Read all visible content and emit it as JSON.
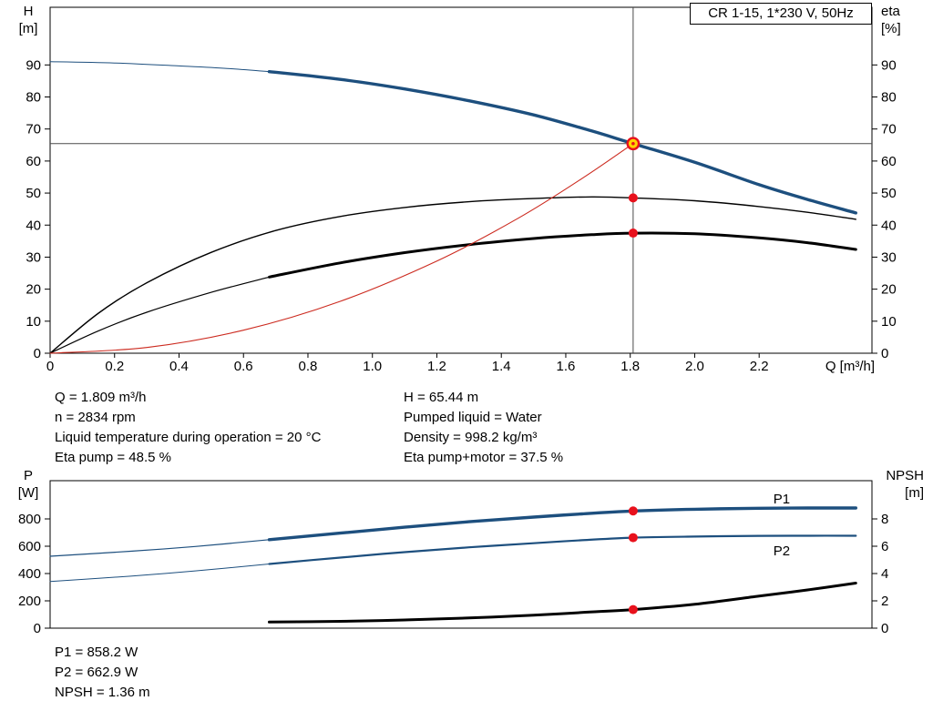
{
  "title_box": {
    "label": "CR 1-15, 1*230 V, 50Hz"
  },
  "colors": {
    "curve_blue": "#1d4f7e",
    "curve_black": "#000000",
    "system_red": "#cc2a1f",
    "dot": "#e8111c",
    "op_point_fill": "#ffd400",
    "duty_line": "#4a4a4a"
  },
  "info_top_left": [
    "Q = 1.809 m³/h",
    "n = 2834 rpm",
    "Liquid temperature during operation = 20 °C",
    "Eta pump = 48.5 %"
  ],
  "info_top_right": [
    "H = 65.44 m",
    "Pumped liquid = Water",
    "Density = 998.2 kg/m³",
    "Eta pump+motor = 37.5 %"
  ],
  "info_bottom": [
    "P1 = 858.2 W",
    "P2 = 662.9 W",
    "NPSH = 1.36 m"
  ],
  "chart_data": [
    {
      "id": "hq-eta",
      "type": "line",
      "x_axis": {
        "label": "Q [m³/h]",
        "min": 0,
        "max": 2.55,
        "ticks": [
          "0",
          "0.2",
          "0.4",
          "0.6",
          "0.8",
          "1.0",
          "1.2",
          "1.4",
          "1.6",
          "1.8",
          "2.0",
          "2.2"
        ]
      },
      "y_left": {
        "title_lines": [
          "H",
          "[m]"
        ],
        "min": 0,
        "max": 108,
        "ticks": [
          90,
          80,
          70,
          60,
          50,
          40,
          30,
          20,
          10,
          0
        ]
      },
      "y_right": {
        "title_lines": [
          "eta",
          "[%]"
        ],
        "min": 0,
        "max": 108,
        "ticks": [
          90,
          80,
          70,
          60,
          50,
          40,
          30,
          20,
          10,
          0
        ]
      },
      "duty_point": {
        "q": 1.809,
        "h": 65.44
      },
      "series": [
        {
          "name": "head-curve",
          "axis": "left",
          "color": "#1d4f7e",
          "width": 1,
          "thick_width": 3.4,
          "thick_from": 0.68,
          "points": [
            [
              0,
              91
            ],
            [
              0.2,
              90.6
            ],
            [
              0.4,
              89.7
            ],
            [
              0.55,
              88.9
            ],
            [
              0.68,
              87.9
            ],
            [
              0.9,
              85.5
            ],
            [
              1.1,
              82.5
            ],
            [
              1.3,
              78.8
            ],
            [
              1.5,
              74.4
            ],
            [
              1.68,
              69.4
            ],
            [
              1.809,
              65.44
            ],
            [
              2.0,
              59.6
            ],
            [
              2.2,
              52.6
            ],
            [
              2.35,
              48
            ],
            [
              2.5,
              43.8
            ]
          ]
        },
        {
          "name": "eta-pump-curve",
          "axis": "right",
          "color": "#000000",
          "width": 1.4,
          "points": [
            [
              0,
              0
            ],
            [
              0.15,
              12.5
            ],
            [
              0.3,
              22
            ],
            [
              0.5,
              31.5
            ],
            [
              0.7,
              38.3
            ],
            [
              0.9,
              42.7
            ],
            [
              1.1,
              45.5
            ],
            [
              1.3,
              47.3
            ],
            [
              1.5,
              48.3
            ],
            [
              1.68,
              48.8
            ],
            [
              1.809,
              48.5
            ],
            [
              2.0,
              47.6
            ],
            [
              2.2,
              45.8
            ],
            [
              2.35,
              44
            ],
            [
              2.5,
              41.8
            ]
          ]
        },
        {
          "name": "eta-pump-motor-curve",
          "axis": "right",
          "color": "#000000",
          "width": 1.2,
          "thick_width": 3,
          "thick_from": 0.68,
          "points": [
            [
              0,
              0
            ],
            [
              0.15,
              7
            ],
            [
              0.3,
              12.8
            ],
            [
              0.5,
              19
            ],
            [
              0.68,
              23.8
            ],
            [
              0.9,
              28.2
            ],
            [
              1.1,
              31.4
            ],
            [
              1.3,
              33.9
            ],
            [
              1.5,
              35.8
            ],
            [
              1.68,
              37
            ],
            [
              1.809,
              37.5
            ],
            [
              2.0,
              37.3
            ],
            [
              2.2,
              36
            ],
            [
              2.35,
              34.5
            ],
            [
              2.5,
              32.4
            ]
          ]
        },
        {
          "name": "system-curve",
          "axis": "left",
          "color": "#cc2a1f",
          "width": 1.1,
          "points": [
            [
              0,
              0
            ],
            [
              0.3,
              1.8
            ],
            [
              0.6,
              7.2
            ],
            [
              0.9,
              16.2
            ],
            [
              1.2,
              28.8
            ],
            [
              1.45,
              42
            ],
            [
              1.65,
              54.5
            ],
            [
              1.809,
              65.44
            ]
          ]
        }
      ],
      "markers": [
        {
          "kind": "operating-point",
          "name": "operating-point-marker",
          "q": 1.809,
          "axis": "left",
          "v": 65.44
        },
        {
          "kind": "dot",
          "name": "eta-pump-dot",
          "q": 1.809,
          "axis": "right",
          "v": 48.5
        },
        {
          "kind": "dot",
          "name": "eta-pump-motor-dot",
          "q": 1.809,
          "axis": "right",
          "v": 37.5
        }
      ]
    },
    {
      "id": "power-npsh",
      "type": "line",
      "x_axis": {
        "label": "",
        "min": 0,
        "max": 2.55,
        "ticks": []
      },
      "y_left": {
        "title_lines": [
          "P",
          "[W]"
        ],
        "min": 0,
        "max": 1080,
        "ticks": [
          800,
          600,
          400,
          200,
          0
        ]
      },
      "y_right": {
        "title_lines": [
          "NPSH",
          "[m]"
        ],
        "min": 0,
        "max": 10.8,
        "ticks": [
          8,
          6,
          4,
          2,
          0
        ]
      },
      "series": [
        {
          "name": "p1-curve",
          "axis": "left",
          "color": "#1d4f7e",
          "width": 1.2,
          "thick_width": 3.4,
          "thick_from": 0.68,
          "points": [
            [
              0,
              527
            ],
            [
              0.25,
              563
            ],
            [
              0.45,
              598
            ],
            [
              0.68,
              648
            ],
            [
              0.9,
              696
            ],
            [
              1.1,
              739
            ],
            [
              1.3,
              779
            ],
            [
              1.5,
              813
            ],
            [
              1.65,
              837
            ],
            [
              1.809,
              858.2
            ],
            [
              2.0,
              871
            ],
            [
              2.2,
              878
            ],
            [
              2.35,
              880
            ],
            [
              2.5,
              880
            ]
          ]
        },
        {
          "name": "p2-curve",
          "axis": "left",
          "color": "#1d4f7e",
          "width": 1,
          "thick_width": 2.2,
          "thick_from": 0.68,
          "points": [
            [
              0,
              342
            ],
            [
              0.25,
              381
            ],
            [
              0.45,
              419
            ],
            [
              0.68,
              470
            ],
            [
              0.9,
              517
            ],
            [
              1.1,
              557
            ],
            [
              1.3,
              592
            ],
            [
              1.5,
              622
            ],
            [
              1.65,
              644
            ],
            [
              1.809,
              662.9
            ],
            [
              2.0,
              671
            ],
            [
              2.2,
              676
            ],
            [
              2.35,
              677
            ],
            [
              2.5,
              677
            ]
          ]
        },
        {
          "name": "npsh-curve",
          "axis": "right",
          "color": "#000000",
          "width": 3,
          "points": [
            [
              0.68,
              0.45
            ],
            [
              0.9,
              0.5
            ],
            [
              1.1,
              0.6
            ],
            [
              1.3,
              0.75
            ],
            [
              1.5,
              0.95
            ],
            [
              1.65,
              1.15
            ],
            [
              1.809,
              1.36
            ],
            [
              2.0,
              1.75
            ],
            [
              2.2,
              2.35
            ],
            [
              2.35,
              2.8
            ],
            [
              2.5,
              3.3
            ]
          ]
        }
      ],
      "series_labels": [
        {
          "text": "P1",
          "q": 2.27,
          "axis": "left",
          "v": 915,
          "color": "#1d4f7e"
        },
        {
          "text": "P2",
          "q": 2.27,
          "axis": "left",
          "v": 535,
          "color": "#1d4f7e"
        }
      ],
      "markers": [
        {
          "kind": "dot",
          "name": "p1-dot",
          "q": 1.809,
          "axis": "left",
          "v": 858.2
        },
        {
          "kind": "dot",
          "name": "p2-dot",
          "q": 1.809,
          "axis": "left",
          "v": 662.9
        },
        {
          "kind": "dot",
          "name": "npsh-dot",
          "q": 1.809,
          "axis": "right",
          "v": 1.36
        }
      ]
    }
  ]
}
